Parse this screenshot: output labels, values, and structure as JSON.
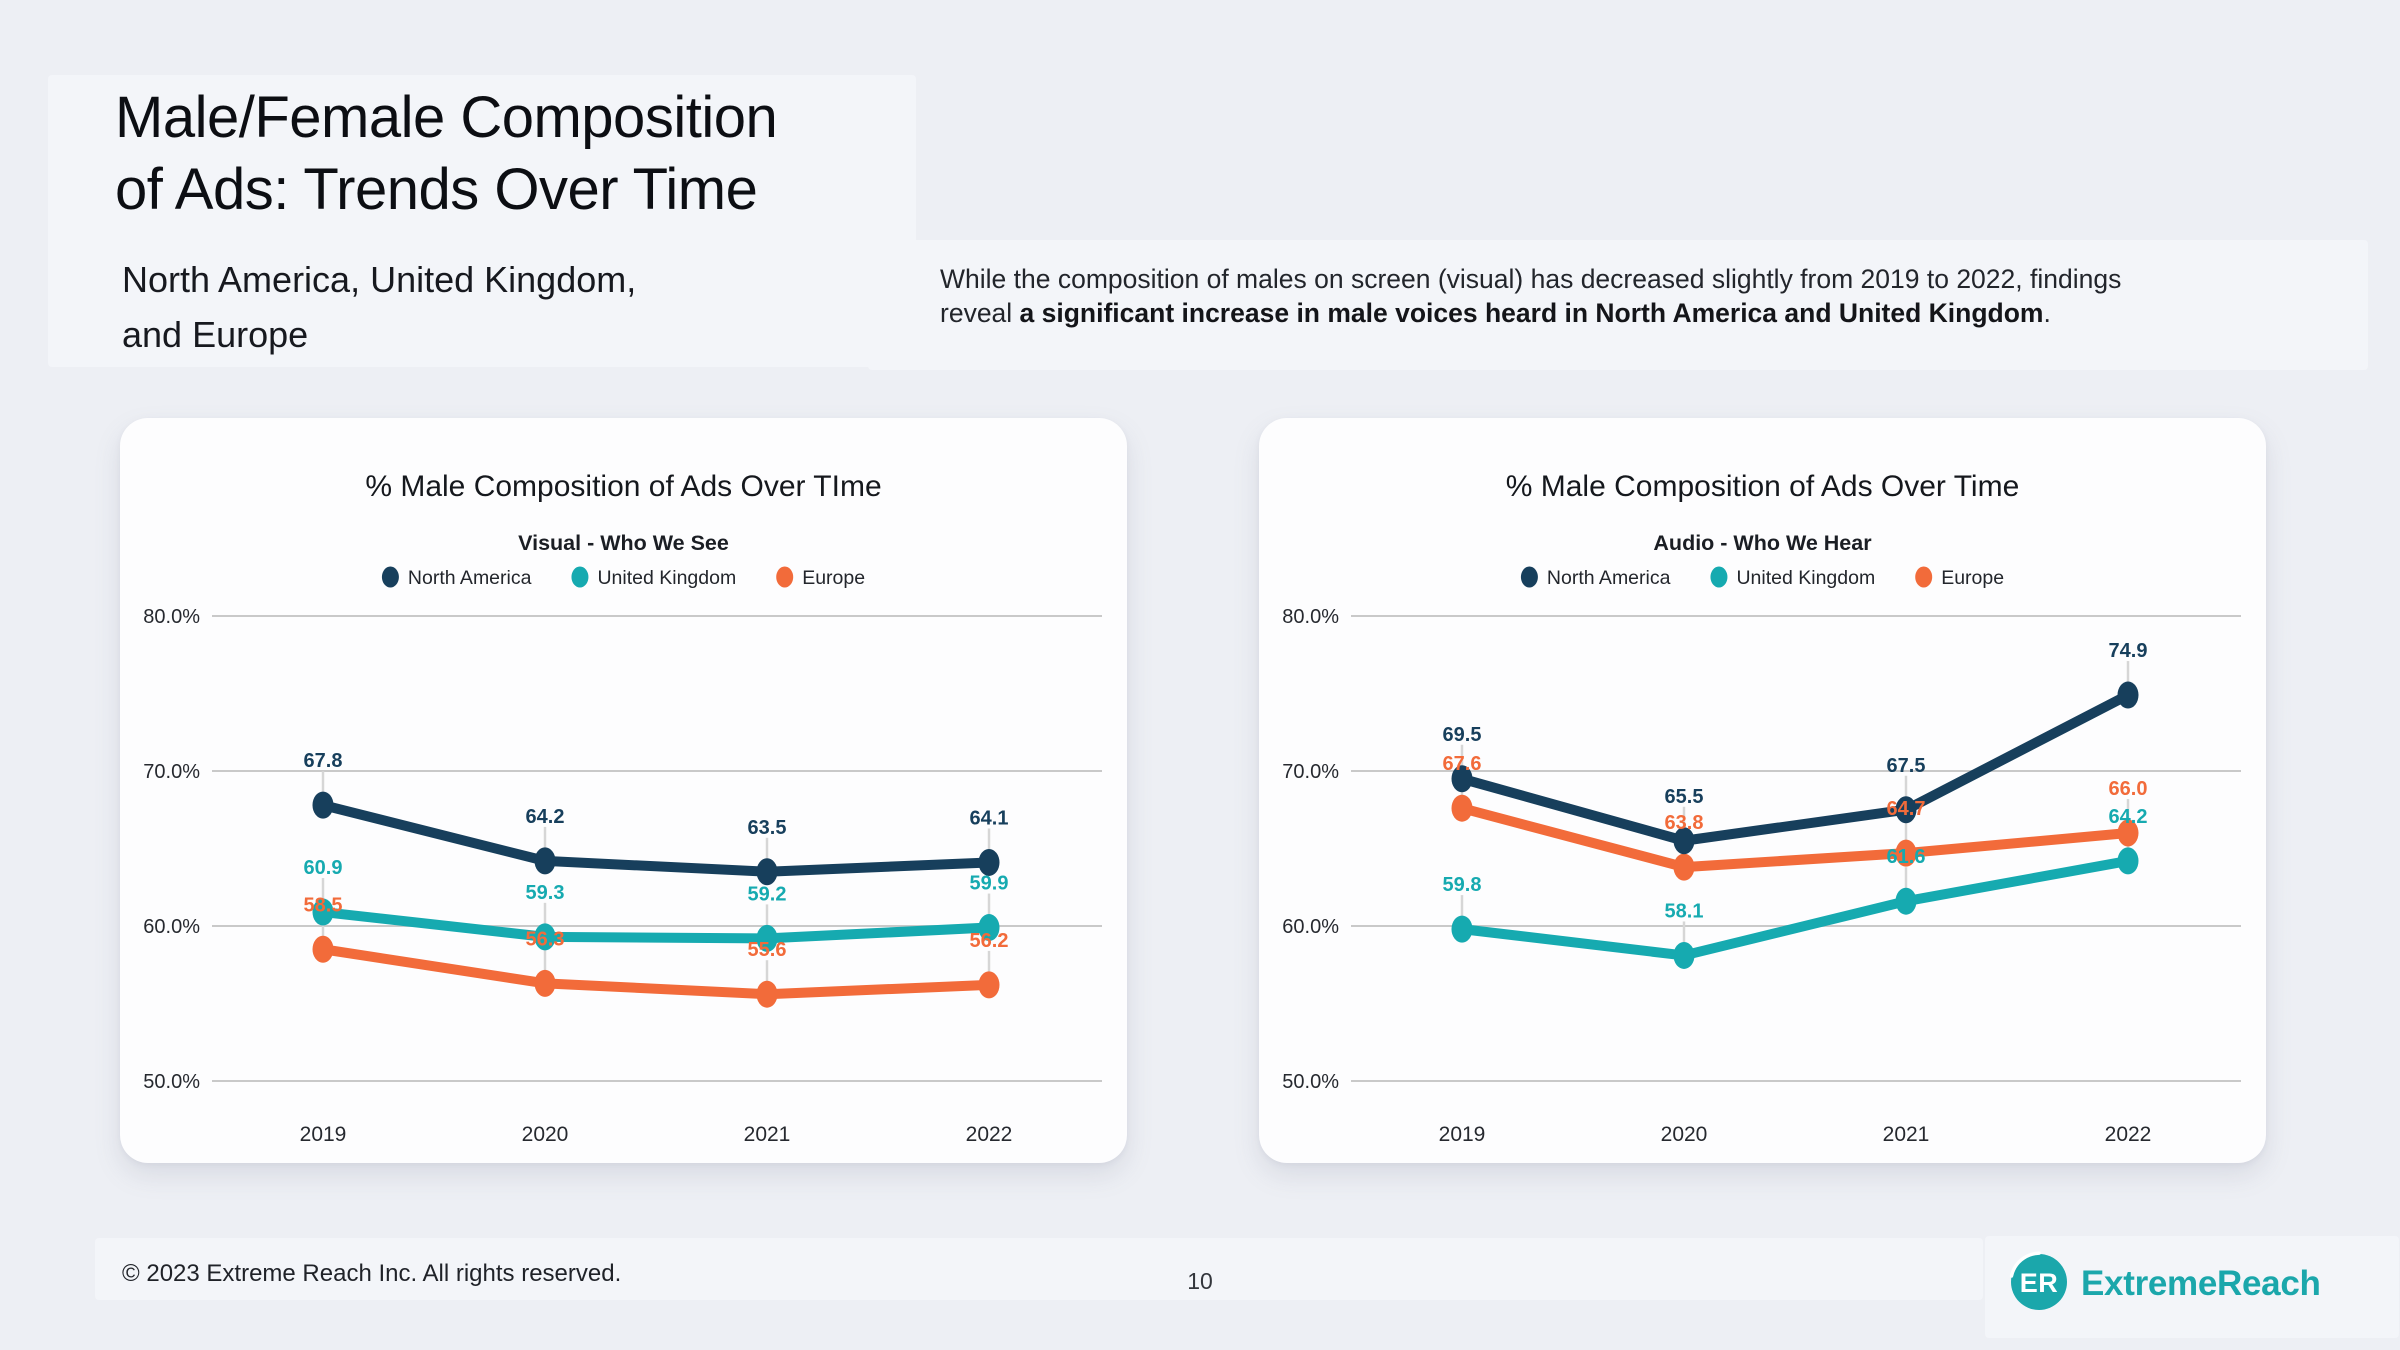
{
  "page": {
    "title_lines": [
      "Male/Female Composition",
      "of Ads: Trends Over Time"
    ],
    "subtitle_lines": [
      "North America, United Kingdom,",
      "and Europe"
    ],
    "paragraph": {
      "line1": "While the composition of males on screen (visual) has decreased slightly from 2019 to 2022, findings",
      "line2_prefix": "reveal ",
      "line2_bold": "a significant increase in male voices heard in North America and United Kingdom",
      "line2_suffix": "."
    },
    "footer": {
      "copyright": "© 2023 Extreme Reach Inc. All rights reserved.",
      "page_number": "10",
      "logo_monogram": "ER",
      "logo_wordmark": "ExtremeReach"
    }
  },
  "colors": {
    "navy": "#173f5c",
    "teal": "#16aab0",
    "orange": "#f26b3a",
    "logo_teal": "#1ba7ab",
    "gridline": "#c9c9c9",
    "card_background": "#fdfdfe",
    "page_background": "#edeff4"
  },
  "chart_data": [
    {
      "type": "line",
      "title": "% Male Composition of Ads Over TIme",
      "subtitle": "Visual - Who We See",
      "xlabel": "",
      "ylabel": "",
      "x": [
        "2019",
        "2020",
        "2021",
        "2022"
      ],
      "ylim": [
        50,
        80
      ],
      "ytick_values": [
        80,
        70,
        60,
        50
      ],
      "yticks": [
        "80.0%",
        "70.0%",
        "60.0%",
        "50.0%"
      ],
      "grid": true,
      "legend_position": "top",
      "series": [
        {
          "name": "North America",
          "color": "#173f5c",
          "values": [
            67.8,
            64.2,
            63.5,
            64.1
          ]
        },
        {
          "name": "United Kingdom",
          "color": "#16aab0",
          "values": [
            60.9,
            59.3,
            59.2,
            59.9
          ]
        },
        {
          "name": "Europe",
          "color": "#f26b3a",
          "values": [
            58.5,
            56.3,
            55.6,
            56.2
          ]
        }
      ]
    },
    {
      "type": "line",
      "title": "% Male Composition of Ads Over Time",
      "subtitle": "Audio - Who We Hear",
      "xlabel": "",
      "ylabel": "",
      "x": [
        "2019",
        "2020",
        "2021",
        "2022"
      ],
      "ylim": [
        50,
        80
      ],
      "ytick_values": [
        80,
        70,
        60,
        50
      ],
      "yticks": [
        "80.0%",
        "70.0%",
        "60.0%",
        "50.0%"
      ],
      "grid": true,
      "legend_position": "top",
      "series": [
        {
          "name": "North America",
          "color": "#173f5c",
          "values": [
            69.5,
            65.5,
            67.5,
            74.9
          ]
        },
        {
          "name": "United Kingdom",
          "color": "#16aab0",
          "values": [
            59.8,
            58.1,
            61.6,
            64.2
          ]
        },
        {
          "name": "Europe",
          "color": "#f26b3a",
          "values": [
            67.6,
            63.8,
            64.7,
            66.0
          ]
        }
      ]
    }
  ]
}
